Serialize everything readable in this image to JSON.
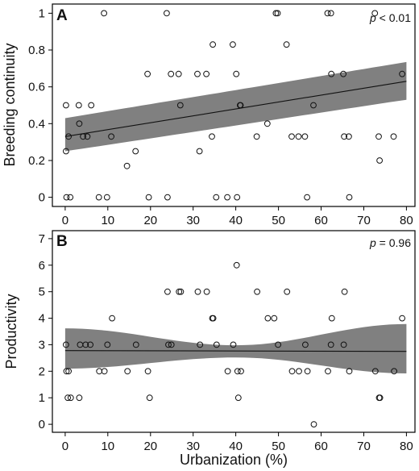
{
  "chart_data": [
    {
      "type": "scatter",
      "panel_label": "A",
      "xlabel": "",
      "ylabel": "Breeding continuity",
      "xlim": [
        -3,
        82
      ],
      "ylim": [
        -0.05,
        1.05
      ],
      "x_ticks": [
        0,
        10,
        20,
        30,
        40,
        50,
        60,
        70,
        80
      ],
      "y_ticks": [
        0,
        0.2,
        0.4,
        0.6,
        0.8,
        1
      ],
      "x_tick_labels": [
        "0",
        "10",
        "20",
        "30",
        "40",
        "50",
        "60",
        "70",
        "80"
      ],
      "y_tick_labels": [
        "0",
        "0.2",
        "0.4",
        "0.6",
        "0.8",
        "1"
      ],
      "p_value": {
        "symbol": "p",
        "text": " < 0.01"
      },
      "grid": false,
      "points": [
        {
          "x": 0.2,
          "y": 0.5
        },
        {
          "x": 0.2,
          "y": 0.25
        },
        {
          "x": 0.3,
          "y": 0
        },
        {
          "x": 0.8,
          "y": 0.33
        },
        {
          "x": 1.2,
          "y": 0
        },
        {
          "x": 3.2,
          "y": 0.5
        },
        {
          "x": 3.3,
          "y": 0.4
        },
        {
          "x": 4.2,
          "y": 0.33
        },
        {
          "x": 5.2,
          "y": 0.33
        },
        {
          "x": 6.1,
          "y": 0.5
        },
        {
          "x": 7.9,
          "y": 0
        },
        {
          "x": 9.1,
          "y": 1
        },
        {
          "x": 9.8,
          "y": 0
        },
        {
          "x": 10.8,
          "y": 0.33
        },
        {
          "x": 14.5,
          "y": 0.17
        },
        {
          "x": 16.5,
          "y": 0.25
        },
        {
          "x": 19.3,
          "y": 0.67
        },
        {
          "x": 19.6,
          "y": 0
        },
        {
          "x": 23.8,
          "y": 1
        },
        {
          "x": 24.0,
          "y": 0
        },
        {
          "x": 24.8,
          "y": 0.67
        },
        {
          "x": 26.6,
          "y": 0.67
        },
        {
          "x": 27.0,
          "y": 0.5
        },
        {
          "x": 31.0,
          "y": 0.67
        },
        {
          "x": 31.5,
          "y": 0.25
        },
        {
          "x": 33.1,
          "y": 0.67
        },
        {
          "x": 34.4,
          "y": 0.33
        },
        {
          "x": 34.6,
          "y": 0.83
        },
        {
          "x": 35.4,
          "y": 0
        },
        {
          "x": 38.0,
          "y": 0
        },
        {
          "x": 39.3,
          "y": 0.83
        },
        {
          "x": 40.1,
          "y": 0.67
        },
        {
          "x": 40.3,
          "y": 0
        },
        {
          "x": 41.0,
          "y": 0.5
        },
        {
          "x": 41.1,
          "y": 0.5
        },
        {
          "x": 44.9,
          "y": 0.33
        },
        {
          "x": 47.4,
          "y": 0.4
        },
        {
          "x": 49.4,
          "y": 1
        },
        {
          "x": 49.8,
          "y": 1
        },
        {
          "x": 51.9,
          "y": 0.83
        },
        {
          "x": 53.1,
          "y": 0.33
        },
        {
          "x": 54.7,
          "y": 0.33
        },
        {
          "x": 56.2,
          "y": 0.33
        },
        {
          "x": 56.7,
          "y": 0
        },
        {
          "x": 58.2,
          "y": 0.5
        },
        {
          "x": 61.5,
          "y": 1
        },
        {
          "x": 62.3,
          "y": 1
        },
        {
          "x": 62.4,
          "y": 0.67
        },
        {
          "x": 65.2,
          "y": 0.67
        },
        {
          "x": 65.4,
          "y": 0.33
        },
        {
          "x": 66.5,
          "y": 0.33
        },
        {
          "x": 66.6,
          "y": 0
        },
        {
          "x": 72.6,
          "y": 1
        },
        {
          "x": 73.5,
          "y": 0.33
        },
        {
          "x": 73.7,
          "y": 0.2
        },
        {
          "x": 77.0,
          "y": 0.33
        },
        {
          "x": 79.0,
          "y": 0.67
        }
      ],
      "fit_line": {
        "x": [
          0,
          80
        ],
        "y": [
          0.33,
          0.63
        ]
      },
      "confidence_band": {
        "x": [
          0,
          80
        ],
        "upper": [
          0.43,
          0.735
        ],
        "lower": [
          0.25,
          0.53
        ]
      },
      "band_color": "#808080"
    },
    {
      "type": "scatter",
      "panel_label": "B",
      "xlabel": "Urbanization (%)",
      "ylabel": "Productivity",
      "xlim": [
        -3,
        82
      ],
      "ylim": [
        -0.3,
        7.3
      ],
      "x_ticks": [
        0,
        10,
        20,
        30,
        40,
        50,
        60,
        70,
        80
      ],
      "y_ticks": [
        0,
        1,
        2,
        3,
        4,
        5,
        6,
        7
      ],
      "x_tick_labels": [
        "0",
        "10",
        "20",
        "30",
        "40",
        "50",
        "60",
        "70",
        "80"
      ],
      "y_tick_labels": [
        "0",
        "1",
        "2",
        "3",
        "4",
        "5",
        "6",
        "7"
      ],
      "p_value": {
        "symbol": "p",
        "text": " = 0.96"
      },
      "grid": false,
      "points": [
        {
          "x": 0.2,
          "y": 3
        },
        {
          "x": 0.3,
          "y": 2
        },
        {
          "x": 0.6,
          "y": 1
        },
        {
          "x": 0.8,
          "y": 2
        },
        {
          "x": 1.3,
          "y": 1
        },
        {
          "x": 3.3,
          "y": 1
        },
        {
          "x": 3.5,
          "y": 3
        },
        {
          "x": 4.8,
          "y": 3
        },
        {
          "x": 5.9,
          "y": 3
        },
        {
          "x": 8.0,
          "y": 2
        },
        {
          "x": 9.2,
          "y": 2
        },
        {
          "x": 9.9,
          "y": 3
        },
        {
          "x": 11.0,
          "y": 4
        },
        {
          "x": 14.6,
          "y": 2
        },
        {
          "x": 16.6,
          "y": 3
        },
        {
          "x": 19.4,
          "y": 2
        },
        {
          "x": 19.8,
          "y": 1
        },
        {
          "x": 24.0,
          "y": 5
        },
        {
          "x": 24.2,
          "y": 3
        },
        {
          "x": 24.9,
          "y": 3
        },
        {
          "x": 26.7,
          "y": 5
        },
        {
          "x": 27.1,
          "y": 5
        },
        {
          "x": 31.1,
          "y": 5
        },
        {
          "x": 31.6,
          "y": 3
        },
        {
          "x": 33.2,
          "y": 5
        },
        {
          "x": 34.5,
          "y": 4
        },
        {
          "x": 34.7,
          "y": 4
        },
        {
          "x": 35.5,
          "y": 3
        },
        {
          "x": 38.1,
          "y": 2
        },
        {
          "x": 39.4,
          "y": 3
        },
        {
          "x": 40.2,
          "y": 6
        },
        {
          "x": 40.4,
          "y": 2
        },
        {
          "x": 40.6,
          "y": 1
        },
        {
          "x": 41.2,
          "y": 2
        },
        {
          "x": 45.0,
          "y": 5
        },
        {
          "x": 47.5,
          "y": 4
        },
        {
          "x": 49.0,
          "y": 4
        },
        {
          "x": 49.9,
          "y": 3
        },
        {
          "x": 52.0,
          "y": 5
        },
        {
          "x": 53.2,
          "y": 2
        },
        {
          "x": 54.8,
          "y": 2
        },
        {
          "x": 56.3,
          "y": 3
        },
        {
          "x": 56.8,
          "y": 2
        },
        {
          "x": 58.3,
          "y": 0
        },
        {
          "x": 61.6,
          "y": 2
        },
        {
          "x": 62.3,
          "y": 3
        },
        {
          "x": 62.5,
          "y": 4
        },
        {
          "x": 65.3,
          "y": 3
        },
        {
          "x": 65.5,
          "y": 5
        },
        {
          "x": 66.6,
          "y": 2
        },
        {
          "x": 72.7,
          "y": 2
        },
        {
          "x": 73.6,
          "y": 1
        },
        {
          "x": 73.8,
          "y": 1
        },
        {
          "x": 77.1,
          "y": 2
        },
        {
          "x": 79.0,
          "y": 4
        }
      ],
      "fit_line": {
        "x": [
          0,
          80
        ],
        "y": [
          2.78,
          2.75
        ]
      },
      "confidence_band": {
        "x": [
          0,
          40,
          80
        ],
        "upper": [
          3.62,
          2.98,
          3.78
        ],
        "lower": [
          2.1,
          2.52,
          1.92
        ]
      },
      "band_color": "#808080"
    }
  ]
}
